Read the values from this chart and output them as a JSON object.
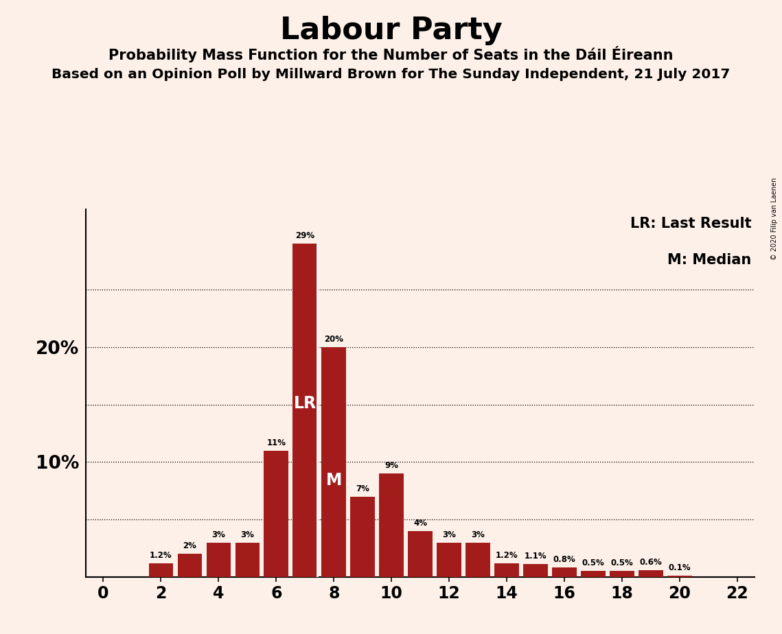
{
  "title": "Labour Party",
  "subtitle1": "Probability Mass Function for the Number of Seats in the Dáil Éireann",
  "subtitle2": "Based on an Opinion Poll by Millward Brown for The Sunday Independent, 21 July 2017",
  "copyright": "© 2020 Filip van Laenen",
  "seats": [
    0,
    1,
    2,
    3,
    4,
    5,
    6,
    7,
    8,
    9,
    10,
    11,
    12,
    13,
    14,
    15,
    16,
    17,
    18,
    19,
    20,
    21,
    22
  ],
  "probabilities": [
    0.0,
    0.0,
    1.2,
    2.0,
    3.0,
    3.0,
    11.0,
    29.0,
    20.0,
    7.0,
    9.0,
    4.0,
    3.0,
    3.0,
    1.2,
    1.1,
    0.8,
    0.5,
    0.5,
    0.6,
    0.1,
    0.0,
    0.0
  ],
  "bar_color": "#a31c1c",
  "background_color": "#fdf0e8",
  "lr_seat": 7,
  "median_seat": 8,
  "ylim": [
    0,
    32
  ],
  "xlim": [
    -0.6,
    22.6
  ],
  "legend_lr": "LR: Last Result",
  "legend_m": "M: Median",
  "grid_ticks": [
    5,
    10,
    15,
    20,
    25
  ]
}
